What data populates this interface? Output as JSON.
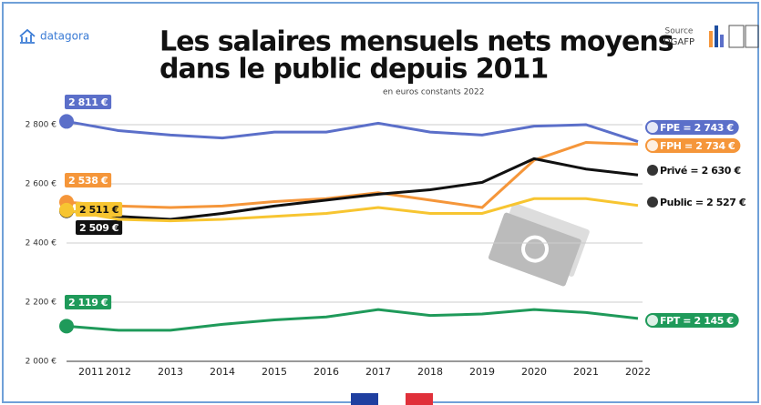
{
  "brand": "datagora",
  "source_label": "Source",
  "source": "DGAFP",
  "chart_data": {
    "type": "line",
    "title": [
      "Les salaires mensuels nets moyens",
      "dans le public depuis 2011"
    ],
    "subtitle": "en euros constants 2022",
    "categories": [
      "2011",
      "2012",
      "2013",
      "2014",
      "2015",
      "2016",
      "2017",
      "2018",
      "2019",
      "2020",
      "2021",
      "2022"
    ],
    "ylim": [
      2000,
      2840
    ],
    "yticks": [
      {
        "value": 2000,
        "label": "2 000 €"
      },
      {
        "value": 2200,
        "label": "2 200 €"
      },
      {
        "value": 2400,
        "label": "2 400 €"
      },
      {
        "value": 2600,
        "label": "2 600 €"
      },
      {
        "value": 2800,
        "label": "2 800 €"
      }
    ],
    "grid": true,
    "series": [
      {
        "color": "#5b6fc9",
        "values": [
          2811,
          2780,
          2765,
          2755,
          2775,
          2775,
          2805,
          2775,
          2765,
          2795,
          2800,
          2743
        ],
        "value_labels": [
          "2 811 €",
          null,
          null,
          null,
          null,
          null,
          null,
          null,
          null,
          null,
          null,
          "FPE = 2 743 €"
        ]
      },
      {
        "color": "#f5963a",
        "values": [
          2538,
          2525,
          2520,
          2525,
          2540,
          2550,
          2570,
          2545,
          2520,
          2680,
          2740,
          2734
        ],
        "value_labels": [
          "2 538 €",
          null,
          null,
          null,
          null,
          null,
          null,
          null,
          null,
          null,
          null,
          "FPH = 2 734 €"
        ]
      },
      {
        "color": "#111111",
        "values": [
          2509,
          2490,
          2480,
          2500,
          2525,
          2545,
          2565,
          2580,
          2605,
          2685,
          2650,
          2630
        ],
        "value_labels": [
          "2 509 €",
          null,
          null,
          null,
          null,
          null,
          null,
          null,
          null,
          null,
          null,
          "Privé = 2 630 €"
        ]
      },
      {
        "color": "#f7c531",
        "values": [
          2511,
          2480,
          2475,
          2480,
          2490,
          2500,
          2520,
          2500,
          2500,
          2550,
          2550,
          2527
        ],
        "value_labels": [
          "2 511 €",
          null,
          null,
          null,
          null,
          null,
          null,
          null,
          null,
          null,
          null,
          "Public = 2 527 €"
        ]
      },
      {
        "color": "#1f9a5a",
        "values": [
          2119,
          2105,
          2105,
          2125,
          2140,
          2150,
          2175,
          2155,
          2160,
          2175,
          2165,
          2145
        ],
        "value_labels": [
          "2 119 €",
          null,
          null,
          null,
          null,
          null,
          null,
          null,
          null,
          null,
          null,
          "FPT = 2 145 €"
        ]
      }
    ]
  }
}
